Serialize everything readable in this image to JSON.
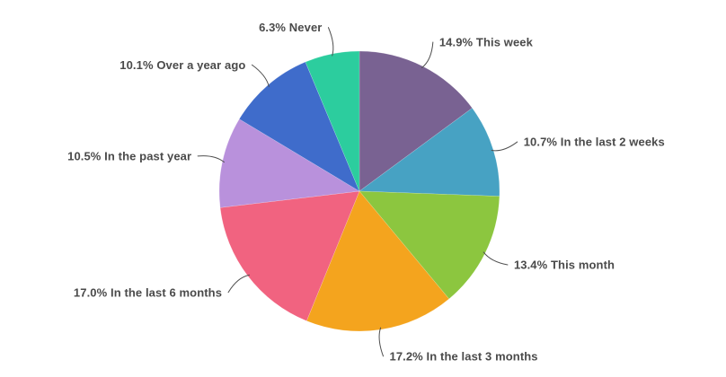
{
  "chart_data": {
    "type": "pie",
    "direction": "clockwise",
    "start_angle_deg": 0,
    "legend_position": "none",
    "grid": false,
    "background": "#ffffff",
    "text_color": "#4A4A4A",
    "leader_line_color": "#4F4F4F",
    "slices": [
      {
        "label": "This week",
        "value": 14.9,
        "display": "14.9% This week",
        "color": "#796292"
      },
      {
        "label": "In the last 2 weeks",
        "value": 10.7,
        "display": "10.7% In the last 2 weeks",
        "color": "#47A2C3"
      },
      {
        "label": "This month",
        "value": 13.4,
        "display": "13.4% This month",
        "color": "#8CC63F"
      },
      {
        "label": "In the last 3 months",
        "value": 17.2,
        "display": "17.2% In the last 3 months",
        "color": "#F4A41E"
      },
      {
        "label": "In the last 6 months",
        "value": 17.0,
        "display": "17.0% In the last 6 months",
        "color": "#F16380"
      },
      {
        "label": "In the past year",
        "value": 10.5,
        "display": "10.5% In the past year",
        "color": "#B991DC"
      },
      {
        "label": "Over a year ago",
        "value": 10.1,
        "display": "10.1% Over a year ago",
        "color": "#3F6CCB"
      },
      {
        "label": "Never",
        "value": 6.3,
        "display": "6.3% Never",
        "color": "#2CCD9E"
      }
    ]
  }
}
